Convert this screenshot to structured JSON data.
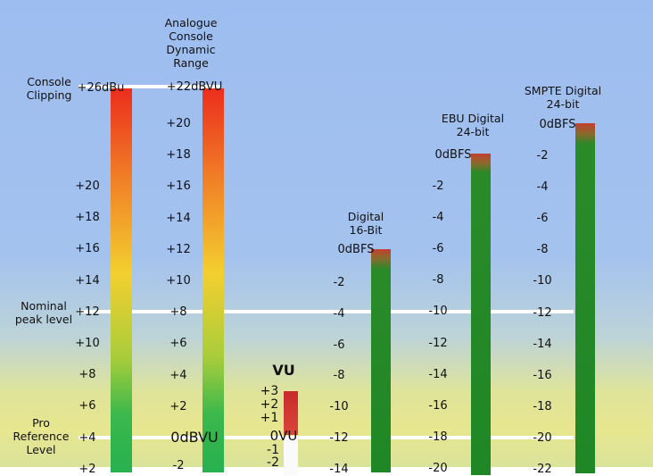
{
  "left_labels": {
    "console_clipping": [
      "Console",
      "Clipping"
    ],
    "nominal_peak": [
      "Nominal",
      "peak level"
    ],
    "pro_reference": [
      "Pro",
      "Reference",
      "Level"
    ]
  },
  "console_scale": {
    "top": "+26dBu",
    "ticks": [
      "+20",
      "+18",
      "+16",
      "+14",
      "+12",
      "+10",
      "+8",
      "+6",
      "+4",
      "+2"
    ]
  },
  "analogue": {
    "title": [
      "Analogue",
      "Console",
      "Dynamic",
      "Range"
    ],
    "top": "+22dBVU",
    "ticks": [
      "+20",
      "+18",
      "+16",
      "+14",
      "+12",
      "+10",
      "+8",
      "+6",
      "+4",
      "+2"
    ],
    "reference": "0dBVU",
    "bottom": "-2"
  },
  "vu": {
    "title": "VU",
    "ticks": [
      "+3",
      "+2",
      "+1",
      "0VU",
      "-1",
      "-2"
    ]
  },
  "digital16": {
    "title": [
      "Digital",
      "16-Bit"
    ],
    "top": "0dBFS",
    "ticks": [
      "-2",
      "-4",
      "-6",
      "-8",
      "-10",
      "-12",
      "-14"
    ]
  },
  "ebu24": {
    "title": [
      "EBU Digital",
      "24-bit"
    ],
    "top": "0dBFS",
    "ticks": [
      "-2",
      "-4",
      "-6",
      "-8",
      "-10",
      "-12",
      "-14",
      "-16",
      "-18",
      "-20"
    ]
  },
  "smpte24": {
    "title": [
      "SMPTE Digital",
      "24-bit"
    ],
    "top": "0dBFS",
    "ticks": [
      "-2",
      "-4",
      "-6",
      "-8",
      "-10",
      "-12",
      "-14",
      "-16",
      "-18",
      "-20",
      "-22"
    ]
  },
  "colors": {
    "analog_top": "#e8321e",
    "analog_mid": "#f2d22e",
    "analog_bottom": "#2db84a",
    "digital_green": "#1f8a26",
    "digital_red": "#c0392b",
    "reference_line": "#ffffff"
  }
}
